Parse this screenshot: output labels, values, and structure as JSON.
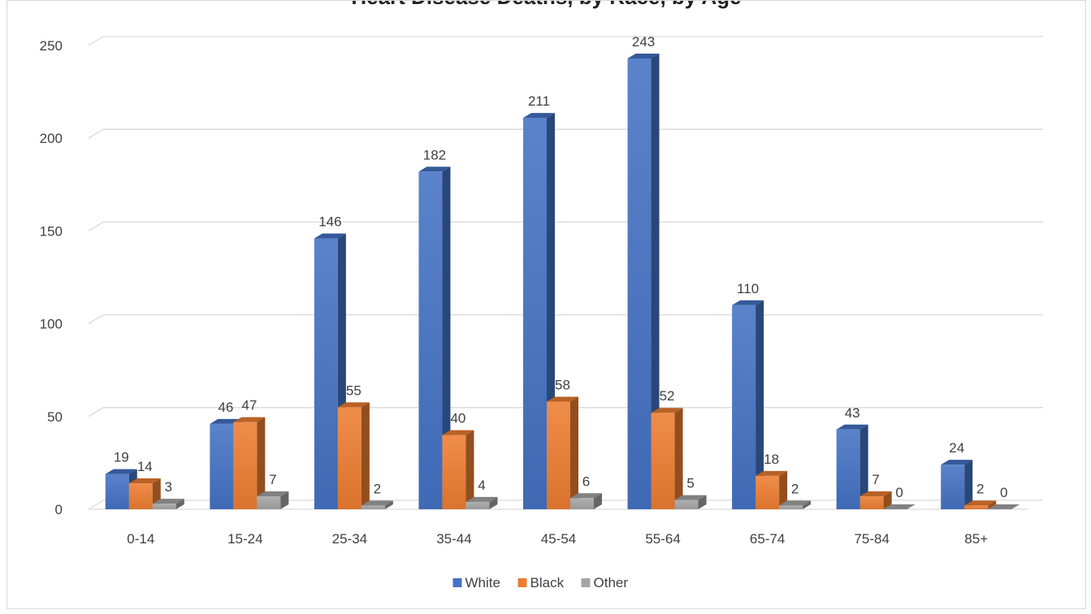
{
  "chart_data": {
    "type": "bar",
    "title": "Heart Disease Deaths, by Race, by Age",
    "xlabel": "",
    "ylabel": "",
    "categories": [
      "0-14",
      "15-24",
      "25-34",
      "35-44",
      "45-54",
      "55-64",
      "65-74",
      "75-84",
      "85+"
    ],
    "series": [
      {
        "name": "White",
        "color": "#4472c4",
        "values": [
          19,
          46,
          146,
          182,
          211,
          243,
          110,
          43,
          24
        ]
      },
      {
        "name": "Black",
        "color": "#ed7d31",
        "values": [
          14,
          47,
          55,
          40,
          58,
          52,
          18,
          7,
          2
        ]
      },
      {
        "name": "Other",
        "color": "#a5a5a5",
        "values": [
          3,
          7,
          2,
          4,
          6,
          5,
          2,
          0,
          0
        ]
      }
    ],
    "ylim": [
      0,
      250
    ],
    "yticks": [
      0,
      50,
      100,
      150,
      200,
      250
    ],
    "grid": true,
    "legend": "bottom",
    "style": "3d-clustered-column"
  }
}
